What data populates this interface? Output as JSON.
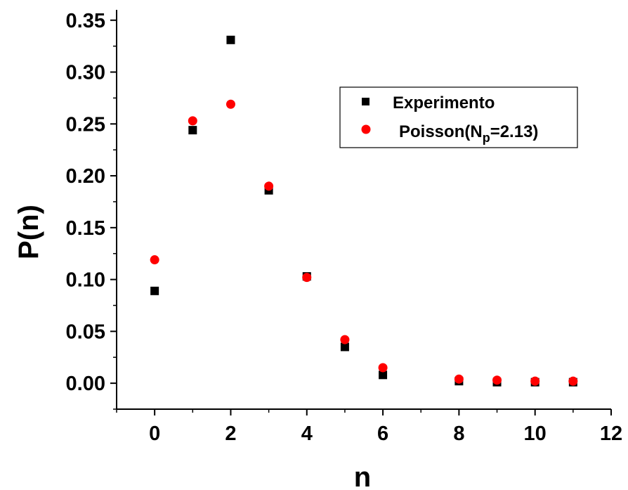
{
  "chart_data": {
    "type": "scatter",
    "xlabel": "n",
    "ylabel": "P(n)",
    "xlim": [
      -1,
      12
    ],
    "ylim": [
      -0.025,
      0.36
    ],
    "x_ticks": [
      0,
      2,
      4,
      6,
      8,
      10,
      12
    ],
    "x_tick_labels": [
      "0",
      "2",
      "4",
      "6",
      "8",
      "10",
      "12"
    ],
    "y_ticks": [
      0.0,
      0.05,
      0.1,
      0.15,
      0.2,
      0.25,
      0.3,
      0.35
    ],
    "y_tick_labels": [
      "0.00",
      "0.05",
      "0.10",
      "0.15",
      "0.20",
      "0.25",
      "0.30",
      "0.35"
    ],
    "grid": false,
    "legend_position": "top-right",
    "series": [
      {
        "name": "Experimento",
        "marker": "square",
        "color": "#000000",
        "x": [
          0,
          1,
          2,
          3,
          4,
          5,
          6,
          8,
          9,
          10,
          11
        ],
        "y": [
          0.089,
          0.244,
          0.331,
          0.186,
          0.103,
          0.035,
          0.008,
          0.002,
          0.001,
          0.001,
          0.001
        ]
      },
      {
        "name_main": "Poisson(N",
        "name_sub": "p",
        "name_tail": "=2.13)",
        "marker": "circle",
        "color": "#ff0000",
        "x": [
          0,
          1,
          2,
          3,
          4,
          5,
          6,
          8,
          9,
          10,
          11
        ],
        "y": [
          0.119,
          0.253,
          0.269,
          0.19,
          0.102,
          0.042,
          0.015,
          0.004,
          0.003,
          0.002,
          0.002
        ]
      }
    ]
  }
}
